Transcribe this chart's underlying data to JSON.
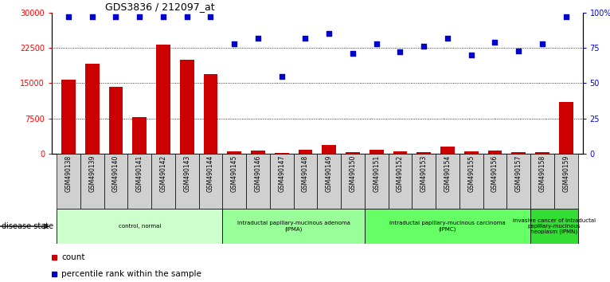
{
  "title": "GDS3836 / 212097_at",
  "samples": [
    "GSM490138",
    "GSM490139",
    "GSM490140",
    "GSM490141",
    "GSM490142",
    "GSM490143",
    "GSM490144",
    "GSM490145",
    "GSM490146",
    "GSM490147",
    "GSM490148",
    "GSM490149",
    "GSM490150",
    "GSM490151",
    "GSM490152",
    "GSM490153",
    "GSM490154",
    "GSM490155",
    "GSM490156",
    "GSM490157",
    "GSM490158",
    "GSM490159"
  ],
  "counts": [
    15800,
    19200,
    14200,
    7800,
    23200,
    20000,
    17000,
    500,
    700,
    200,
    900,
    1900,
    300,
    900,
    500,
    400,
    1500,
    500,
    700,
    300,
    300,
    11000
  ],
  "percentile_ranks": [
    97,
    97,
    97,
    97,
    97,
    97,
    97,
    78,
    82,
    55,
    82,
    85,
    71,
    78,
    72,
    76,
    82,
    70,
    79,
    73,
    78,
    97
  ],
  "bar_color": "#cc0000",
  "dot_color": "#0000cc",
  "ylim_left": [
    0,
    30000
  ],
  "ylim_right": [
    0,
    100
  ],
  "yticks_left": [
    0,
    7500,
    15000,
    22500,
    30000
  ],
  "yticks_right": [
    0,
    25,
    50,
    75,
    100
  ],
  "yticklabels_right": [
    "0",
    "25",
    "50",
    "75",
    "100%"
  ],
  "grid_values": [
    7500,
    15000,
    22500
  ],
  "groups": [
    {
      "label": "control, normal",
      "start": 0,
      "end": 6,
      "color": "#ccffcc"
    },
    {
      "label": "intraductal papillary-mucinous adenoma\n(IPMA)",
      "start": 7,
      "end": 12,
      "color": "#99ff99"
    },
    {
      "label": "intraductal papillary-mucinous carcinoma\n(IPMC)",
      "start": 13,
      "end": 19,
      "color": "#66ff66"
    },
    {
      "label": "invasive cancer of intraductal\npapillary-mucinous\nneoplasm (IPMN)",
      "start": 20,
      "end": 21,
      "color": "#33dd33"
    }
  ],
  "legend_items": [
    {
      "label": "count",
      "color": "#cc0000"
    },
    {
      "label": "percentile rank within the sample",
      "color": "#0000cc"
    }
  ],
  "disease_state_label": "disease state",
  "background_color": "#ffffff"
}
